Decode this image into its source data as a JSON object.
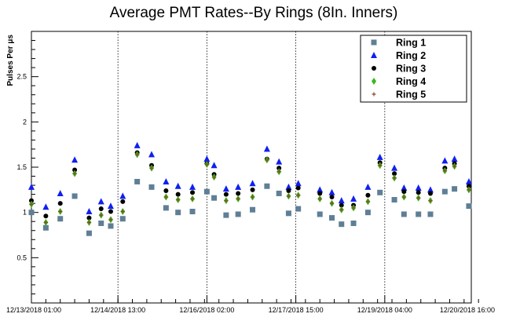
{
  "chart_data": {
    "type": "scatter",
    "title": "Average PMT Rates--By Rings (8In. Inners)",
    "ylabel": "Pulses Per μs",
    "xlabel": "",
    "ylim": [
      0,
      3
    ],
    "yticks": [
      0.5,
      1,
      1.5,
      2,
      2.5
    ],
    "xlim": [
      "12/13/2018 01:00",
      "12/20/2018 16:00"
    ],
    "xtick_labels": [
      "12/13/2018 01:00",
      "12/14/2018 13:00",
      "12/16/2018 02:00",
      "12/17/2018 15:00",
      "12/19/2018 04:00",
      "12/20/2018 16:00"
    ],
    "vertical_dividers": [
      "12/14/2018 13:00",
      "12/16/2018 02:00",
      "12/17/2018 15:00",
      "12/19/2018 04:00"
    ],
    "grid": false,
    "legend_position": "top-right",
    "x": [
      "12/13/2018 01:00",
      "12/13/2018 07:00",
      "12/13/2018 13:00",
      "12/13/2018 19:00",
      "12/14/2018 01:00",
      "12/14/2018 06:00",
      "12/14/2018 10:00",
      "12/14/2018 15:00",
      "12/14/2018 21:00",
      "12/15/2018 03:00",
      "12/15/2018 09:00",
      "12/15/2018 14:00",
      "12/15/2018 20:00",
      "12/16/2018 02:00",
      "12/16/2018 05:00",
      "12/16/2018 10:00",
      "12/16/2018 15:00",
      "12/16/2018 21:00",
      "12/17/2018 03:00",
      "12/17/2018 08:00",
      "12/17/2018 12:00",
      "12/17/2018 16:00",
      "12/18/2018 01:00",
      "12/18/2018 06:00",
      "12/18/2018 10:00",
      "12/18/2018 15:00",
      "12/18/2018 21:00",
      "12/19/2018 02:00",
      "12/19/2018 08:00",
      "12/19/2018 12:00",
      "12/19/2018 18:00",
      "12/19/2018 23:00",
      "12/20/2018 05:00",
      "12/20/2018 09:00",
      "12/20/2018 15:00"
    ],
    "series": [
      {
        "name": "Ring 1",
        "color": "#5f7f96",
        "marker": "square",
        "values": [
          1.0,
          0.83,
          0.93,
          1.18,
          0.77,
          0.88,
          0.85,
          0.93,
          1.34,
          1.28,
          1.05,
          1.0,
          1.01,
          1.23,
          1.16,
          0.97,
          0.98,
          1.03,
          1.29,
          1.21,
          0.99,
          1.04,
          0.98,
          0.94,
          0.87,
          0.88,
          1.0,
          1.22,
          1.14,
          0.98,
          0.98,
          0.98,
          1.23,
          1.26,
          1.07
        ]
      },
      {
        "name": "Ring 2",
        "color": "#1020f0",
        "marker": "triangle",
        "values": [
          1.28,
          1.06,
          1.21,
          1.58,
          1.01,
          1.12,
          1.07,
          1.18,
          1.74,
          1.64,
          1.34,
          1.29,
          1.28,
          1.59,
          1.52,
          1.26,
          1.28,
          1.32,
          1.7,
          1.56,
          1.28,
          1.32,
          1.25,
          1.22,
          1.13,
          1.15,
          1.28,
          1.61,
          1.49,
          1.27,
          1.27,
          1.25,
          1.57,
          1.59,
          1.34
        ]
      },
      {
        "name": "Ring 3",
        "color": "#000000",
        "marker": "circle",
        "values": [
          1.13,
          0.96,
          1.1,
          1.47,
          0.94,
          1.04,
          1.01,
          1.12,
          1.66,
          1.52,
          1.24,
          1.2,
          1.22,
          1.54,
          1.42,
          1.2,
          1.21,
          1.25,
          1.59,
          1.49,
          1.24,
          1.27,
          1.21,
          1.17,
          1.08,
          1.08,
          1.19,
          1.55,
          1.43,
          1.23,
          1.22,
          1.21,
          1.49,
          1.54,
          1.29
        ]
      },
      {
        "name": "Ring 4",
        "color": "#3cb81a",
        "marker": "diamond",
        "values": [
          1.09,
          0.89,
          1.01,
          1.43,
          0.89,
          0.97,
          0.92,
          1.01,
          1.64,
          1.49,
          1.17,
          1.14,
          1.15,
          1.53,
          1.39,
          1.13,
          1.15,
          1.17,
          1.58,
          1.45,
          1.18,
          1.19,
          1.15,
          1.1,
          1.03,
          1.05,
          1.12,
          1.52,
          1.38,
          1.17,
          1.16,
          1.13,
          1.46,
          1.51,
          1.25
        ]
      },
      {
        "name": "Ring 5",
        "color": "#8b4a2b",
        "marker": "plus",
        "values": [
          1.09,
          0.89,
          1.01,
          1.43,
          0.89,
          0.97,
          0.92,
          1.01,
          1.64,
          1.49,
          1.17,
          1.14,
          1.15,
          1.53,
          1.39,
          1.13,
          1.15,
          1.17,
          1.58,
          1.45,
          1.18,
          1.19,
          1.15,
          1.1,
          1.03,
          1.05,
          1.12,
          1.52,
          1.38,
          1.17,
          1.16,
          1.13,
          1.46,
          1.51,
          1.25
        ]
      }
    ]
  }
}
